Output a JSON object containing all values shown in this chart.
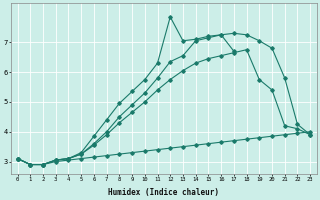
{
  "xlabel": "Humidex (Indice chaleur)",
  "background_color": "#cceee8",
  "grid_color": "#ffffff",
  "line_color": "#1a7a6a",
  "xlim": [
    -0.5,
    23.5
  ],
  "ylim": [
    2.6,
    8.3
  ],
  "yticks": [
    3,
    4,
    5,
    6,
    7
  ],
  "xticks": [
    0,
    1,
    2,
    3,
    4,
    5,
    6,
    7,
    8,
    9,
    10,
    11,
    12,
    13,
    14,
    15,
    16,
    17,
    18,
    19,
    20,
    21,
    22,
    23
  ],
  "line1_x": [
    0,
    1,
    2,
    3,
    4,
    5,
    6,
    7,
    8,
    9,
    10,
    11,
    12,
    13,
    14,
    15,
    16,
    17,
    18,
    19,
    20,
    21,
    22,
    23
  ],
  "line1_y": [
    3.1,
    2.9,
    2.9,
    3.0,
    3.05,
    3.1,
    3.15,
    3.2,
    3.25,
    3.3,
    3.35,
    3.4,
    3.45,
    3.5,
    3.55,
    3.6,
    3.65,
    3.7,
    3.75,
    3.8,
    3.85,
    3.9,
    3.95,
    4.0
  ],
  "line2_x": [
    0,
    1,
    2,
    3,
    4,
    5,
    6,
    7,
    8,
    9,
    10,
    11,
    12,
    13,
    14,
    15,
    16,
    17,
    18,
    19,
    20,
    21,
    22,
    23
  ],
  "line2_y": [
    3.1,
    2.9,
    2.9,
    3.05,
    3.1,
    3.25,
    3.55,
    3.9,
    4.3,
    4.65,
    5.0,
    5.4,
    5.75,
    6.05,
    6.3,
    6.45,
    6.55,
    6.65,
    6.75,
    5.75,
    5.4,
    4.2,
    4.1,
    3.9
  ],
  "line3_x": [
    0,
    1,
    2,
    3,
    4,
    5,
    6,
    7,
    8,
    9,
    10,
    11,
    12,
    13,
    14,
    15,
    16,
    17,
    18,
    19,
    20,
    21,
    22,
    23
  ],
  "line3_y": [
    3.1,
    2.9,
    2.9,
    3.05,
    3.1,
    3.25,
    3.6,
    4.0,
    4.5,
    4.9,
    5.3,
    5.8,
    6.35,
    6.55,
    7.05,
    7.15,
    7.25,
    7.3,
    7.25,
    7.05,
    6.8,
    5.8,
    4.25,
    3.9
  ],
  "line4_x": [
    0,
    1,
    2,
    3,
    4,
    5,
    6,
    7,
    8,
    9,
    10,
    11,
    12,
    13,
    14,
    15,
    16,
    17
  ],
  "line4_y": [
    3.1,
    2.9,
    2.9,
    3.05,
    3.1,
    3.3,
    3.85,
    4.4,
    4.95,
    5.35,
    5.75,
    6.3,
    7.85,
    7.05,
    7.1,
    7.2,
    7.25,
    6.7
  ]
}
